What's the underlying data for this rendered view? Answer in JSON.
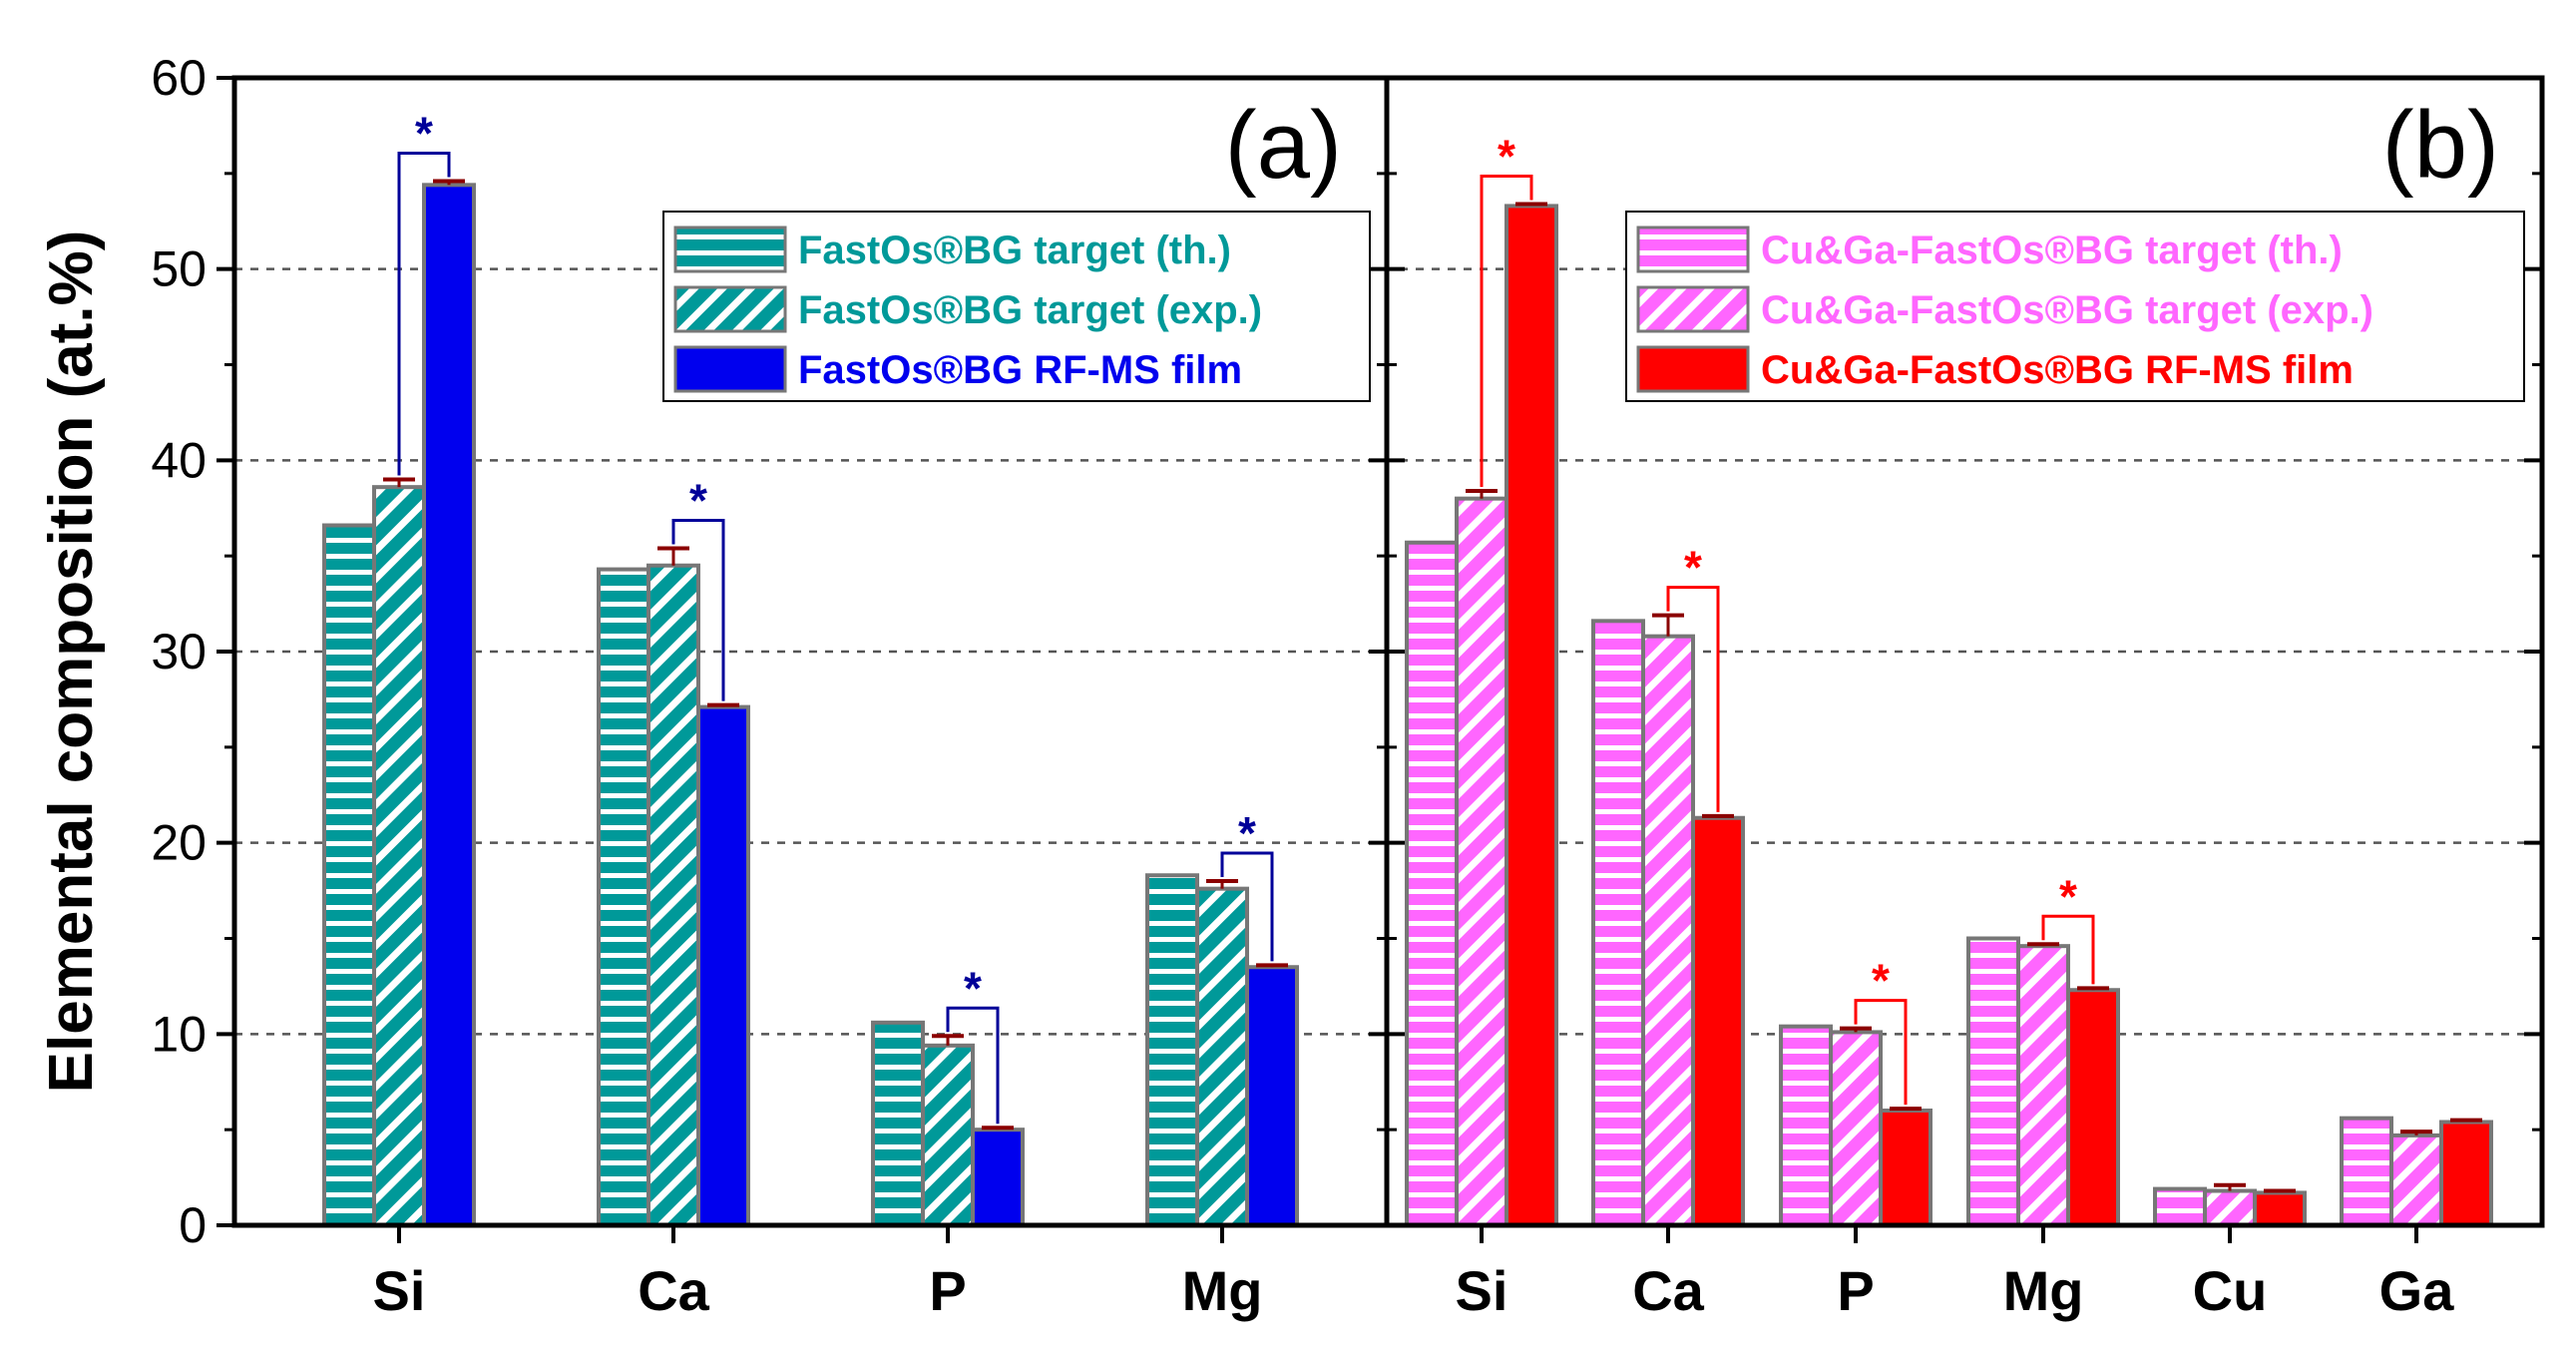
{
  "chart_data": {
    "type": "bar",
    "ylabel": "Elemental composition (at.%)",
    "ylim": [
      0,
      60
    ],
    "yticks": [
      "0",
      "10",
      "20",
      "30",
      "40",
      "50",
      "60"
    ],
    "grid": "horizontal dashed",
    "panels": [
      {
        "tag": "(a)",
        "categories": [
          "Si",
          "Ca",
          "P",
          "Mg"
        ],
        "legend_position": "top-right",
        "accent": "#009999",
        "film_color": "#0000ee",
        "star_color": "#000099",
        "series": [
          {
            "name": "FastOs®BG target (th.)",
            "pattern": "horizontal",
            "values": [
              36.6,
              34.3,
              10.6,
              18.3
            ],
            "errors": [
              0,
              0,
              0,
              0
            ]
          },
          {
            "name": "FastOs®BG target (exp.)",
            "pattern": "diagonal",
            "values": [
              38.6,
              34.5,
              9.4,
              17.6
            ],
            "errors": [
              0.4,
              0.9,
              0.5,
              0.4
            ]
          },
          {
            "name": "FastOs®BG RF-MS film",
            "pattern": "solid",
            "values": [
              54.4,
              27.1,
              5.0,
              13.5
            ],
            "errors": [
              0.2,
              0.1,
              0.1,
              0.1
            ]
          }
        ],
        "significance": [
          {
            "category": "Si",
            "label": "*"
          },
          {
            "category": "Ca",
            "label": "*"
          },
          {
            "category": "P",
            "label": "*"
          },
          {
            "category": "Mg",
            "label": "*"
          }
        ]
      },
      {
        "tag": "(b)",
        "categories": [
          "Si",
          "Ca",
          "P",
          "Mg",
          "Cu",
          "Ga"
        ],
        "legend_position": "top-right",
        "accent": "#ff66ff",
        "film_color": "#ff0000",
        "star_color": "#ff0000",
        "series": [
          {
            "name": "Cu&Ga-FastOs®BG target (th.)",
            "pattern": "horizontal",
            "values": [
              35.7,
              31.6,
              10.4,
              15.0,
              1.9,
              5.6
            ],
            "errors": [
              0,
              0,
              0,
              0,
              0,
              0
            ]
          },
          {
            "name": "Cu&Ga-FastOs®BG target (exp.)",
            "pattern": "diagonal",
            "values": [
              38.0,
              30.8,
              10.1,
              14.6,
              1.8,
              4.7
            ],
            "errors": [
              0.4,
              1.1,
              0.2,
              0.1,
              0.3,
              0.2
            ]
          },
          {
            "name": "Cu&Ga-FastOs®BG RF-MS film",
            "pattern": "solid",
            "values": [
              53.3,
              21.3,
              6.0,
              12.3,
              1.7,
              5.4
            ],
            "errors": [
              0.1,
              0.1,
              0.1,
              0.1,
              0.1,
              0.1
            ]
          }
        ],
        "significance": [
          {
            "category": "Si",
            "label": "*"
          },
          {
            "category": "Ca",
            "label": "*"
          },
          {
            "category": "P",
            "label": "*"
          },
          {
            "category": "Mg",
            "label": "*"
          }
        ]
      }
    ]
  }
}
